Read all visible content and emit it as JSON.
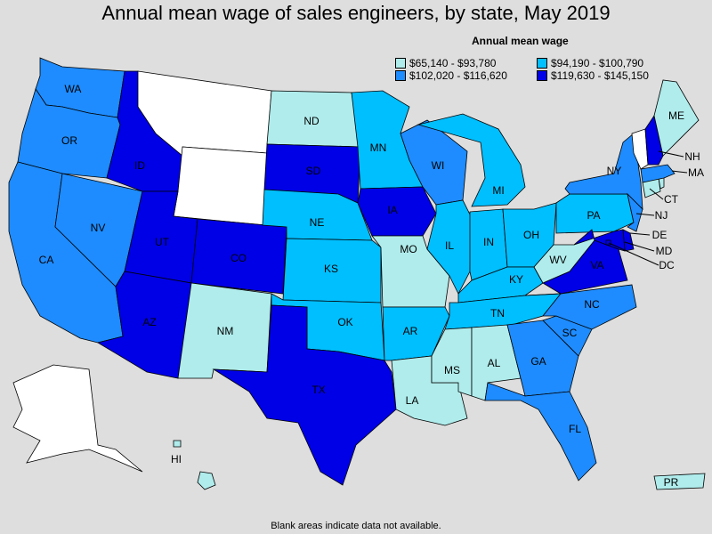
{
  "title": "Annual mean wage of sales engineers, by state, May 2019",
  "legend": {
    "title": "Annual mean wage",
    "items": [
      {
        "label": "$65,140 - $93,780",
        "color": "#b0ecec"
      },
      {
        "label": "$94,190 - $100,790",
        "color": "#00bfff"
      },
      {
        "label": "$102,020 - $116,620",
        "color": "#1e8cff"
      },
      {
        "label": "$119,630 - $145,150",
        "color": "#0000e6"
      }
    ]
  },
  "footnote": "Blank areas indicate data not available.",
  "no_data_color": "#ffffff",
  "states": {
    "WA": 2,
    "OR": 2,
    "CA": 2,
    "NV": 2,
    "ID": 3,
    "MT": -1,
    "WY": -1,
    "UT": 3,
    "AZ": 3,
    "CO": 3,
    "NM": 0,
    "ND": 0,
    "SD": 3,
    "NE": 1,
    "KS": 1,
    "OK": 1,
    "TX": 3,
    "MN": 1,
    "IA": 3,
    "MO": 0,
    "AR": 1,
    "LA": 0,
    "WI": 2,
    "IL": 1,
    "MI": 1,
    "IN": 1,
    "OH": 1,
    "KY": 1,
    "TN": 1,
    "MS": 0,
    "AL": 0,
    "GA": 2,
    "FL": 2,
    "SC": 2,
    "NC": 2,
    "VA": 3,
    "WV": 0,
    "PA": 1,
    "NY": 2,
    "NJ": 2,
    "DE": 3,
    "MD": 3,
    "DC": 3,
    "CT": 0,
    "RI": 0,
    "MA": 2,
    "VT": -1,
    "NH": 3,
    "ME": 0,
    "AK": -1,
    "HI": 0,
    "PR": 0
  },
  "labels": {
    "WA": "WA",
    "OR": "OR",
    "CA": "CA",
    "NV": "NV",
    "ID": "ID",
    "UT": "UT",
    "AZ": "AZ",
    "CO": "CO",
    "NM": "NM",
    "ND": "ND",
    "SD": "SD",
    "NE": "NE",
    "KS": "KS",
    "OK": "OK",
    "TX": "TX",
    "MN": "MN",
    "IA": "IA",
    "MO": "MO",
    "AR": "AR",
    "LA": "LA",
    "WI": "WI",
    "IL": "IL",
    "MI": "MI",
    "IN": "IN",
    "OH": "OH",
    "KY": "KY",
    "TN": "TN",
    "MS": "MS",
    "AL": "AL",
    "GA": "GA",
    "FL": "FL",
    "SC": "SC",
    "NC": "NC",
    "VA": "VA",
    "WV": "WV",
    "PA": "PA",
    "NY": "NY",
    "NJ": "NJ",
    "DE": "DE",
    "MD": "MD",
    "DC": "DC",
    "CT": "CT",
    "MA": "MA",
    "NH": "NH",
    "ME": "ME",
    "HI": "HI",
    "PR": "PR"
  }
}
